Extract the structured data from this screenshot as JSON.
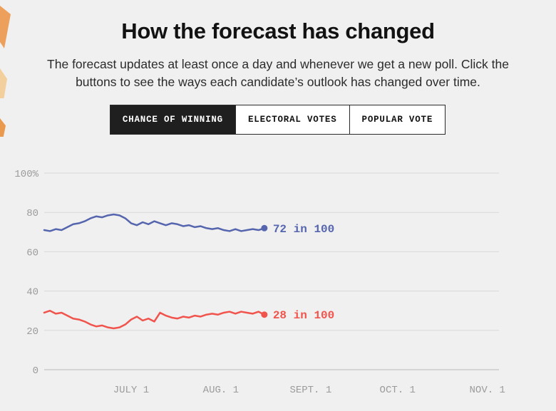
{
  "page": {
    "background": "#f0f0f0",
    "title": "How the forecast has changed",
    "subtitle": "The forecast updates at least once a day and whenever we get a new poll. Click the buttons to see the ways each candidate’s outlook has changed over time."
  },
  "tabs": [
    {
      "id": "chance-of-winning",
      "label": "CHANCE OF WINNING",
      "active": true
    },
    {
      "id": "electoral-votes",
      "label": "ELECTORAL VOTES",
      "active": false
    },
    {
      "id": "popular-vote",
      "label": "POPULAR VOTE",
      "active": false
    }
  ],
  "chart_data": {
    "type": "line",
    "title": "",
    "xlabel": "",
    "ylabel": "",
    "grid": true,
    "ylim": [
      0,
      100
    ],
    "x_domain_days": [
      0,
      157
    ],
    "y_ticks": [
      {
        "value": 100,
        "label": "100%"
      },
      {
        "value": 80,
        "label": "80"
      },
      {
        "value": 60,
        "label": "60"
      },
      {
        "value": 40,
        "label": "40"
      },
      {
        "value": 20,
        "label": "20"
      },
      {
        "value": 0,
        "label": "0"
      }
    ],
    "x_ticks": [
      {
        "day": 30,
        "label": "JULY 1"
      },
      {
        "day": 61,
        "label": "AUG. 1"
      },
      {
        "day": 92,
        "label": "SEPT. 1"
      },
      {
        "day": 122,
        "label": "OCT. 1"
      },
      {
        "day": 153,
        "label": "NOV. 1"
      }
    ],
    "colors": {
      "gridline": "#d8d8d8",
      "zero_line": "#b8b8b8",
      "axis_text": "#9b9b9b"
    },
    "series": [
      {
        "id": "favorite",
        "end_label": "72 in 100",
        "color": "#5565ae",
        "x": [
          0,
          2,
          4,
          6,
          8,
          10,
          12,
          14,
          16,
          18,
          20,
          22,
          24,
          26,
          28,
          30,
          32,
          34,
          36,
          38,
          40,
          42,
          44,
          46,
          48,
          50,
          52,
          54,
          56,
          58,
          60,
          62,
          64,
          66,
          68,
          70,
          72,
          74,
          76
        ],
        "values": [
          71,
          70.5,
          71.5,
          71,
          72.5,
          74,
          74.5,
          75.5,
          77,
          78,
          77.5,
          78.5,
          79,
          78.5,
          77,
          74.5,
          73.5,
          75,
          74,
          75.5,
          74.5,
          73.5,
          74.5,
          74,
          73,
          73.5,
          72.5,
          73,
          72,
          71.5,
          72,
          71,
          70.5,
          71.5,
          70.5,
          71,
          71.5,
          71,
          72
        ]
      },
      {
        "id": "underdog",
        "end_label": "28 in 100",
        "color": "#f0544c",
        "x": [
          0,
          2,
          4,
          6,
          8,
          10,
          12,
          14,
          16,
          18,
          20,
          22,
          24,
          26,
          28,
          30,
          32,
          34,
          36,
          38,
          40,
          42,
          44,
          46,
          48,
          50,
          52,
          54,
          56,
          58,
          60,
          62,
          64,
          66,
          68,
          70,
          72,
          74,
          76
        ],
        "values": [
          29,
          30,
          28.5,
          29,
          27.5,
          26,
          25.5,
          24.5,
          23,
          22,
          22.5,
          21.5,
          21,
          21.5,
          23,
          25.5,
          27,
          25,
          26,
          24.5,
          29,
          27.5,
          26.5,
          26,
          27,
          26.5,
          27.5,
          27,
          28,
          28.5,
          28,
          29,
          29.5,
          28.5,
          29.5,
          29,
          28.5,
          29.5,
          28
        ]
      }
    ]
  }
}
